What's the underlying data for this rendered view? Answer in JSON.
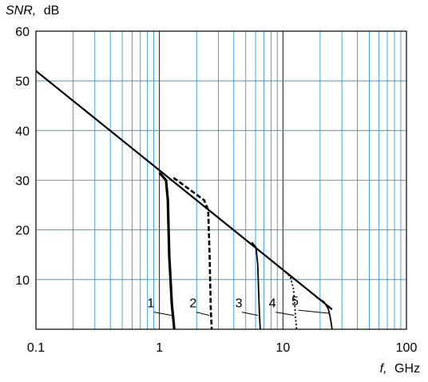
{
  "chart_data": {
    "type": "line",
    "ylabel_var": "SNR,",
    "ylabel_unit": "dB",
    "xlabel_var": "f,",
    "xlabel_unit": "GHz",
    "x_scale": "log",
    "xlim": [
      0.1,
      100
    ],
    "ylim": [
      0,
      60
    ],
    "x_ticks": [
      {
        "value": 0.1,
        "label": "0.1"
      },
      {
        "value": 1,
        "label": "1"
      },
      {
        "value": 10,
        "label": "10"
      },
      {
        "value": 100,
        "label": "100"
      }
    ],
    "y_ticks": [
      {
        "value": 10,
        "label": "10"
      },
      {
        "value": 20,
        "label": "20"
      },
      {
        "value": 30,
        "label": "30"
      },
      {
        "value": 40,
        "label": "40"
      },
      {
        "value": 50,
        "label": "50"
      },
      {
        "value": 60,
        "label": "60"
      }
    ],
    "grid": true,
    "grid_color": "#1a8fd6",
    "major_grid_color": "#000000",
    "common_line": {
      "x": [
        0.1,
        1.0,
        25
      ],
      "y": [
        52,
        32,
        4
      ]
    },
    "series": [
      {
        "name": "1",
        "style": "solid-thick",
        "x": [
          1.0,
          1.13,
          1.17,
          1.2,
          1.26,
          1.32
        ],
        "y": [
          31.5,
          30,
          26,
          15,
          5,
          0
        ],
        "label_x": 0.93,
        "label_y": 3.6
      },
      {
        "name": "2",
        "style": "dashed",
        "x": [
          1.3,
          2.3,
          2.48,
          2.55,
          2.6,
          2.65
        ],
        "y": [
          30.5,
          26,
          24,
          15,
          5,
          0
        ],
        "label_x": 2.05,
        "label_y": 3.6
      },
      {
        "name": "3",
        "style": "solid",
        "x": [
          5.6,
          6.05,
          6.25,
          6.35,
          6.45,
          6.55
        ],
        "y": [
          17.5,
          16.5,
          13,
          8,
          3,
          0
        ],
        "label_x": 4.8,
        "label_y": 3.6
      },
      {
        "name": "4",
        "style": "dotted",
        "x": [
          10.5,
          11.5,
          12.2,
          12.6,
          12.9
        ],
        "y": [
          11.5,
          10.5,
          8,
          3,
          0
        ],
        "label_x": 9.0,
        "label_y": 3.6
      },
      {
        "name": "5",
        "style": "solid",
        "x": [
          18.5,
          21.5,
          23.2,
          24.0,
          24.6,
          25.0
        ],
        "y": [
          6.5,
          5.5,
          4.2,
          2.8,
          1.2,
          0
        ],
        "label_x": 13.7,
        "label_y": 4.0
      }
    ]
  }
}
